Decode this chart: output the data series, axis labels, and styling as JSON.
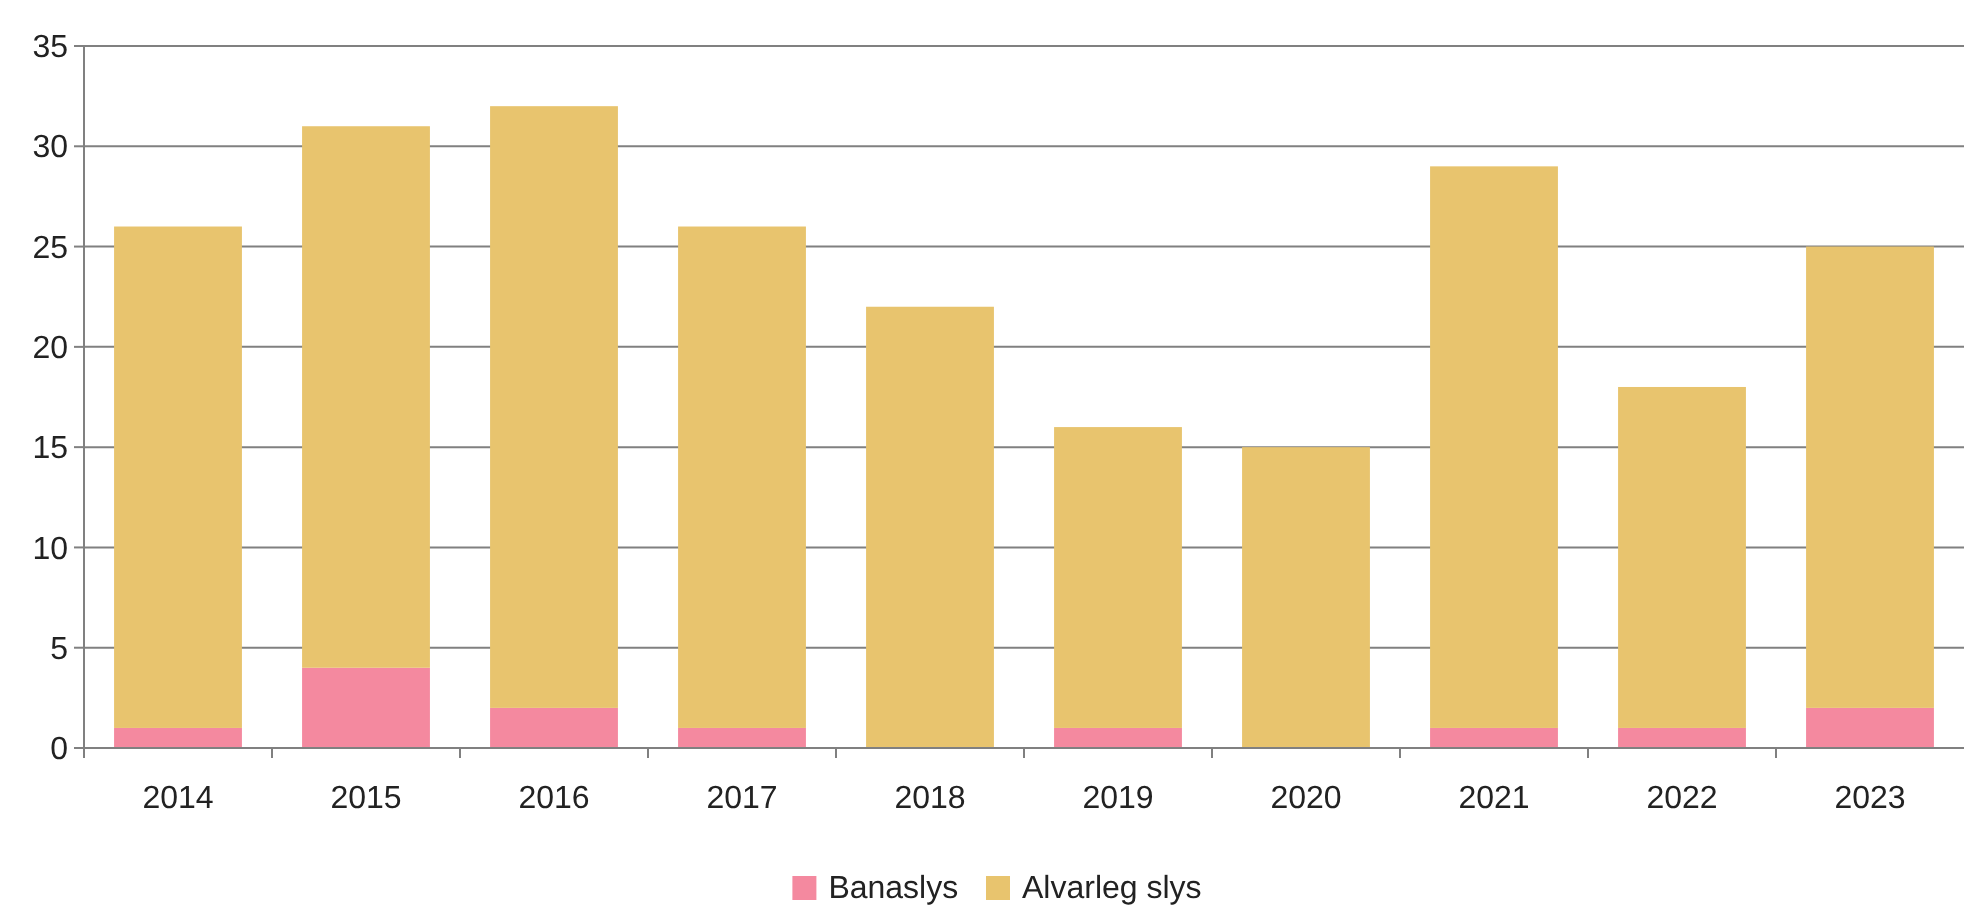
{
  "chart_data": {
    "type": "bar",
    "stacked": true,
    "categories": [
      "2014",
      "2015",
      "2016",
      "2017",
      "2018",
      "2019",
      "2020",
      "2021",
      "2022",
      "2023"
    ],
    "series": [
      {
        "name": "Banaslys",
        "color": "#f4899f",
        "values": [
          1,
          4,
          2,
          1,
          0,
          1,
          0,
          1,
          1,
          2
        ]
      },
      {
        "name": "Alvarleg slys",
        "color": "#e8c46e",
        "values": [
          25,
          27,
          30,
          25,
          22,
          15,
          15,
          28,
          17,
          23
        ]
      }
    ],
    "ylim": [
      0,
      35
    ],
    "yticks": [
      0,
      5,
      10,
      15,
      20,
      25,
      30,
      35
    ],
    "grid": "y",
    "legend": "bottom"
  }
}
